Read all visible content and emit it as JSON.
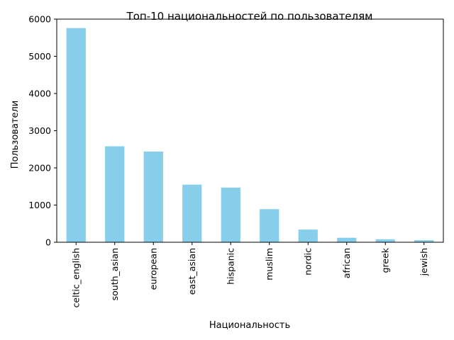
{
  "chart_data": {
    "type": "bar",
    "title": "Топ-10 национальностей по пользователям",
    "xlabel": "Национальность",
    "ylabel": "Пользователи",
    "categories": [
      "celtic_english",
      "south_asian",
      "european",
      "east_asian",
      "hispanic",
      "muslim",
      "nordic",
      "african",
      "greek",
      "jewish"
    ],
    "values": [
      5760,
      2580,
      2440,
      1550,
      1470,
      890,
      340,
      120,
      80,
      55
    ],
    "ylim": [
      0,
      6000
    ],
    "yticks": [
      0,
      1000,
      2000,
      3000,
      4000,
      5000,
      6000
    ],
    "ytick_labels": [
      "0",
      "1000",
      "2000",
      "3000",
      "4000",
      "5000",
      "6000"
    ],
    "bar_color": "#87ceeb",
    "grid": false,
    "legend": "none"
  }
}
